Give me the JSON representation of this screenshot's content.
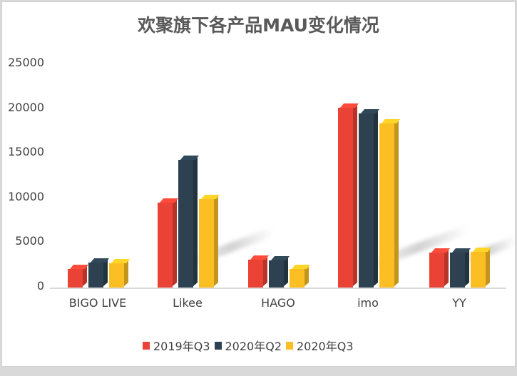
{
  "chart_data": {
    "type": "bar",
    "title": "欢聚旗下各产品MAU变化情况",
    "xlabel": "",
    "ylabel": "",
    "ylim": [
      0,
      25000
    ],
    "yticks": [
      0,
      5000,
      10000,
      15000,
      20000,
      25000
    ],
    "grid": false,
    "legend_position": "bottom",
    "style": "3d-column",
    "categories": [
      "BIGO LIVE",
      "Likee",
      "HAGO",
      "imo",
      "YY"
    ],
    "series": [
      {
        "name": "2019年Q3",
        "color": "#ea4335",
        "values": [
          2100,
          9500,
          3100,
          20100,
          3900
        ]
      },
      {
        "name": "2020年Q2",
        "color": "#2d4150",
        "values": [
          2800,
          14300,
          3000,
          19500,
          3900
        ]
      },
      {
        "name": "2020年Q3",
        "color": "#fbbf24",
        "values": [
          2700,
          9900,
          2100,
          18400,
          4000
        ]
      }
    ]
  },
  "yticks_labels": [
    "25000",
    "20000",
    "15000",
    "10000",
    "5000",
    "0"
  ]
}
